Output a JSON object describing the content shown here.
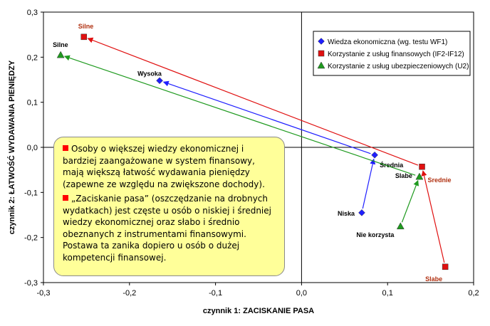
{
  "chart_data": {
    "type": "scatter",
    "xlabel": "czynnik 1: ZACISKANIE PASA",
    "ylabel": "czynnik 2: ŁATWOŚĆ WYDAWANIA PIENIĘDZY",
    "xlim": [
      -0.3,
      0.2
    ],
    "ylim": [
      -0.3,
      0.3
    ],
    "x_ticks": [
      "-0,3",
      "-0,2",
      "-0,1",
      "0,0",
      "0,1",
      "0,2"
    ],
    "y_ticks": [
      "0,3",
      "0,2",
      "0,1",
      "0,0",
      "-0,1",
      "-0,2",
      "-0,3"
    ],
    "grid": false,
    "legend_position": "top-right",
    "series": [
      {
        "name": "Wiedza ekonomiczna (wg. testu WF1)",
        "color": "#1f1fff",
        "marker": "diamond",
        "points": [
          {
            "label": "Niska",
            "x": 0.07,
            "y": -0.145
          },
          {
            "label": "Średnia",
            "x": 0.085,
            "y": -0.017
          },
          {
            "label": "Wysoka",
            "x": -0.165,
            "y": 0.148
          }
        ]
      },
      {
        "name": "Korzystanie z usług finansowych (IF2-IF12)",
        "color": "#e01010",
        "marker": "square",
        "points": [
          {
            "label": "Slabe",
            "x": 0.167,
            "y": -0.265
          },
          {
            "label": "Srednie",
            "x": 0.14,
            "y": -0.043
          },
          {
            "label": "Silne",
            "x": -0.253,
            "y": 0.245
          }
        ]
      },
      {
        "name": "Korzystanie z usług ubezpieczeniowych (U2)",
        "color": "#1f9a1f",
        "marker": "triangle",
        "points": [
          {
            "label": "Nie korzysta",
            "x": 0.115,
            "y": -0.175
          },
          {
            "label": "Slabe",
            "x": 0.137,
            "y": -0.065
          },
          {
            "label": "Silne",
            "x": -0.28,
            "y": 0.205
          }
        ]
      }
    ]
  },
  "note": {
    "paragraphs": [
      "Osoby o większej wiedzy ekonomicznej i bardziej zaangażowane w system finansowy, mają większą łatwość wydawania pieniędzy (zapewne ze względu na zwiększone dochody).",
      "„Zaciskanie pasa” (oszczędzanie na drobnych wydatkach) jest częste u osób o niskiej i średniej wiedzy ekonomicznej oraz słabo i średnio obeznanych z instrumentami finansowymi. Postawa ta zanika dopiero u osób o dużej kompetencji finansowej."
    ],
    "bullet_color": "#ff0000",
    "background": "#ffff99"
  }
}
